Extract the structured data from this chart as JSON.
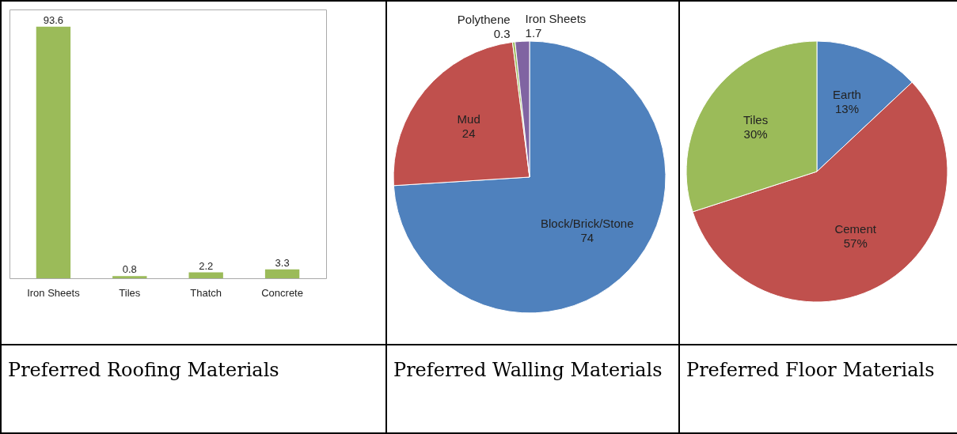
{
  "chart_data": [
    {
      "type": "bar",
      "title": "Preferred Roofing Materials",
      "categories": [
        "Iron Sheets",
        "Tiles",
        "Thatch",
        "Concrete"
      ],
      "values": [
        93.6,
        0.8,
        2.2,
        3.3
      ],
      "color": "#9bbb59",
      "data_labels": true
    },
    {
      "type": "pie",
      "title": "Preferred Walling Materials",
      "categories": [
        "Block/Brick/Stone",
        "Mud",
        "Polythene",
        "Iron Sheets"
      ],
      "values": [
        74,
        24,
        0.3,
        1.7
      ],
      "colors": [
        "#4f81bd",
        "#c0504d",
        "#9bbb59",
        "#8064a2"
      ],
      "data_labels": true
    },
    {
      "type": "pie",
      "title": "Preferred Floor Materials",
      "categories": [
        "Earth",
        "Cement",
        "Tiles"
      ],
      "values": [
        13,
        57,
        30
      ],
      "colors": [
        "#4f81bd",
        "#c0504d",
        "#9bbb59"
      ],
      "value_labels": [
        "13%",
        "57%",
        "30%"
      ]
    }
  ]
}
